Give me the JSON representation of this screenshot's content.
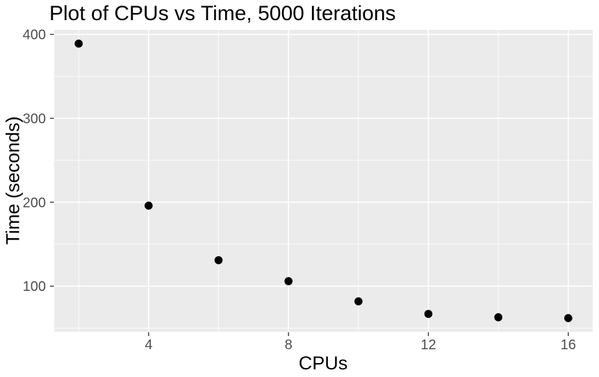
{
  "chart_data": {
    "type": "scatter",
    "title": "Plot of CPUs vs Time, 5000 Iterations",
    "xlabel": "CPUs",
    "ylabel": "Time (seconds)",
    "x": [
      2,
      4,
      6,
      8,
      10,
      12,
      14,
      16
    ],
    "y": [
      389,
      196,
      131,
      106,
      82,
      67,
      63,
      62
    ],
    "xlim": [
      1.3,
      16.7
    ],
    "ylim": [
      45.6,
      405.4
    ],
    "x_ticks": [
      4,
      8,
      12,
      16
    ],
    "y_ticks": [
      100,
      200,
      300,
      400
    ],
    "x_minor_gridlines": [
      2,
      6,
      10,
      14
    ],
    "y_minor_gridlines": [
      50,
      150,
      250,
      350
    ],
    "grid": true,
    "legend_position": "none",
    "point_radius": 5.8,
    "colors": {
      "panel_background": "#EBEBEB",
      "gridline": "#FFFFFF",
      "point": "#000000",
      "tick_label": "#4D4D4D",
      "tick_mark": "#333333",
      "title": "#000000",
      "axis_title": "#000000"
    }
  }
}
